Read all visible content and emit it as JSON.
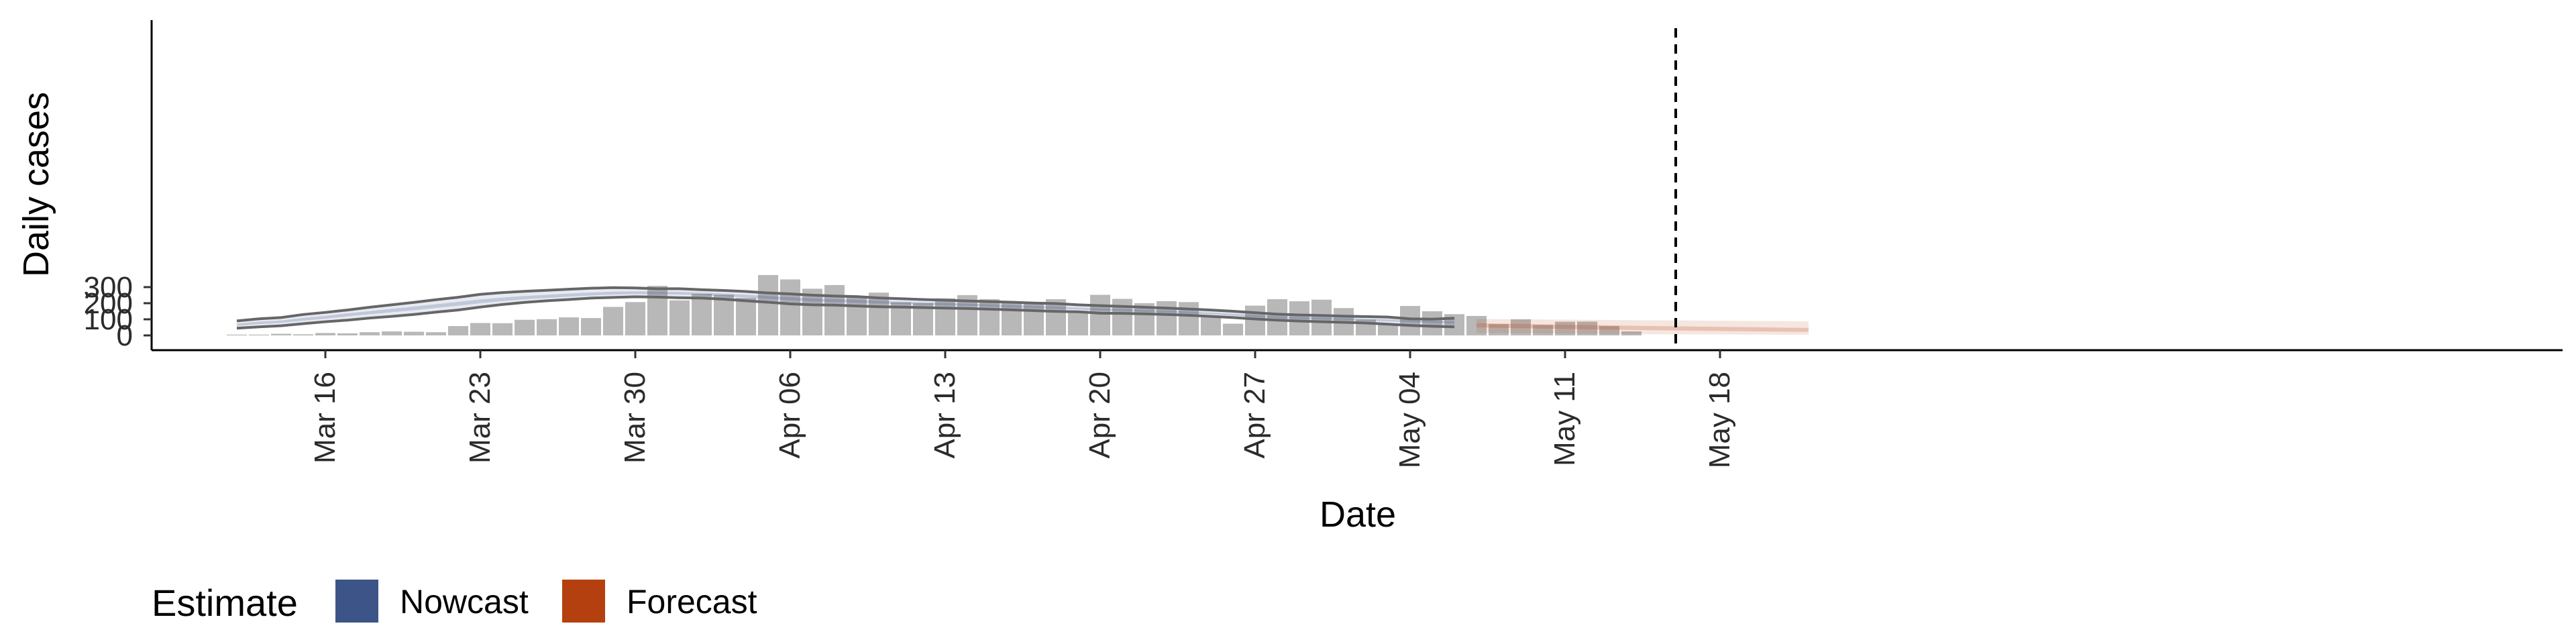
{
  "chart_data": {
    "type": "bar",
    "xlabel": "Date",
    "ylabel": "Daily cases",
    "ylim": [
      0,
      400
    ],
    "yticks": [
      0,
      100,
      200,
      300
    ],
    "xticks": [
      "Mar 16",
      "Mar 23",
      "Mar 30",
      "Apr 06",
      "Apr 13",
      "Apr 20",
      "Apr 27",
      "May 04",
      "May 11",
      "May 18"
    ],
    "xtick_dates": [
      "2020-03-16",
      "2020-03-23",
      "2020-03-30",
      "2020-04-06",
      "2020-04-13",
      "2020-04-20",
      "2020-04-27",
      "2020-05-04",
      "2020-05-11",
      "2020-05-18"
    ],
    "date_range": [
      "2020-03-09",
      "2020-05-24"
    ],
    "grid": false,
    "legend": {
      "position": "bottom-left",
      "title": "Estimate",
      "entries": [
        {
          "label": "Nowcast",
          "color": "#3c5488"
        },
        {
          "label": "Forecast",
          "color": "#b5400f"
        }
      ]
    },
    "bars": {
      "color": "#b8b8b8",
      "dates": [
        "2020-03-12",
        "2020-03-13",
        "2020-03-14",
        "2020-03-15",
        "2020-03-16",
        "2020-03-17",
        "2020-03-18",
        "2020-03-19",
        "2020-03-20",
        "2020-03-21",
        "2020-03-22",
        "2020-03-23",
        "2020-03-24",
        "2020-03-25",
        "2020-03-26",
        "2020-03-27",
        "2020-03-28",
        "2020-03-29",
        "2020-03-30",
        "2020-03-31",
        "2020-04-01",
        "2020-04-02",
        "2020-04-03",
        "2020-04-04",
        "2020-04-05",
        "2020-04-06",
        "2020-04-07",
        "2020-04-08",
        "2020-04-09",
        "2020-04-10",
        "2020-04-11",
        "2020-04-12",
        "2020-04-13",
        "2020-04-14",
        "2020-04-15",
        "2020-04-16",
        "2020-04-17",
        "2020-04-18",
        "2020-04-19",
        "2020-04-20",
        "2020-04-21",
        "2020-04-22",
        "2020-04-23",
        "2020-04-24",
        "2020-04-25",
        "2020-04-26",
        "2020-04-27",
        "2020-04-28",
        "2020-04-29",
        "2020-04-30",
        "2020-05-01",
        "2020-05-02",
        "2020-05-03",
        "2020-05-04",
        "2020-05-05",
        "2020-05-06",
        "2020-05-07",
        "2020-05-08",
        "2020-05-09",
        "2020-05-10",
        "2020-05-11",
        "2020-05-12",
        "2020-05-13",
        "2020-05-14"
      ],
      "values": [
        5,
        5,
        10,
        7,
        15,
        13,
        20,
        25,
        23,
        20,
        58,
        77,
        76,
        97,
        101,
        112,
        108,
        177,
        207,
        308,
        218,
        258,
        252,
        233,
        375,
        348,
        290,
        313,
        243,
        266,
        205,
        200,
        231,
        250,
        225,
        208,
        205,
        225,
        153,
        252,
        227,
        200,
        213,
        207,
        122,
        73,
        185,
        225,
        212,
        222,
        170,
        98,
        65,
        183,
        150,
        132,
        121,
        70,
        100,
        65,
        85,
        86,
        58,
        25
      ]
    },
    "series": [
      {
        "name": "Nowcast",
        "color": "#3c5488",
        "dates": [
          "2020-03-12",
          "2020-03-13",
          "2020-03-14",
          "2020-03-15",
          "2020-03-16",
          "2020-03-17",
          "2020-03-18",
          "2020-03-19",
          "2020-03-20",
          "2020-03-21",
          "2020-03-22",
          "2020-03-23",
          "2020-03-24",
          "2020-03-25",
          "2020-03-26",
          "2020-03-27",
          "2020-03-28",
          "2020-03-29",
          "2020-03-30",
          "2020-03-31",
          "2020-04-01",
          "2020-04-02",
          "2020-04-03",
          "2020-04-04",
          "2020-04-05",
          "2020-04-06",
          "2020-04-07",
          "2020-04-08",
          "2020-04-09",
          "2020-04-10",
          "2020-04-11",
          "2020-04-12",
          "2020-04-13",
          "2020-04-14",
          "2020-04-15",
          "2020-04-16",
          "2020-04-17",
          "2020-04-18",
          "2020-04-19",
          "2020-04-20",
          "2020-04-21",
          "2020-04-22",
          "2020-04-23",
          "2020-04-24",
          "2020-04-25",
          "2020-04-26",
          "2020-04-27",
          "2020-04-28",
          "2020-04-29",
          "2020-04-30",
          "2020-05-01",
          "2020-05-02",
          "2020-05-03",
          "2020-05-04",
          "2020-05-05",
          "2020-05-06"
        ],
        "median": [
          65,
          78,
          85,
          100,
          112,
          128,
          141,
          155,
          168,
          182,
          196,
          210,
          222,
          232,
          240,
          248,
          255,
          261,
          264,
          263,
          262,
          258,
          252,
          244,
          236,
          228,
          221,
          216,
          212,
          207,
          202,
          198,
          194,
          190,
          186,
          180,
          176,
          172,
          166,
          161,
          157,
          152,
          148,
          142,
          136,
          128,
          120,
          113,
          108,
          104,
          101,
          98,
          94,
          90,
          86,
          82
        ],
        "lower_90": [
          45,
          53,
          60,
          73,
          85,
          95,
          108,
          118,
          130,
          145,
          158,
          176,
          192,
          205,
          215,
          223,
          232,
          236,
          240,
          238,
          234,
          232,
          225,
          215,
          206,
          196,
          190,
          188,
          183,
          178,
          176,
          173,
          170,
          167,
          163,
          159,
          154,
          149,
          147,
          138,
          137,
          134,
          130,
          125,
          118,
          111,
          102,
          95,
          89,
          85,
          81,
          77,
          70,
          62,
          57,
          53
        ],
        "upper_90": [
          90,
          103,
          111,
          130,
          143,
          158,
          175,
          190,
          205,
          222,
          237,
          255,
          266,
          274,
          280,
          287,
          293,
          297,
          295,
          290,
          290,
          284,
          279,
          273,
          264,
          258,
          250,
          245,
          241,
          233,
          228,
          223,
          219,
          214,
          210,
          206,
          201,
          198,
          190,
          185,
          180,
          175,
          170,
          164,
          158,
          150,
          141,
          132,
          127,
          124,
          120,
          117,
          114,
          103,
          101,
          107
        ]
      },
      {
        "name": "Forecast",
        "color": "#b5400f",
        "dates": [
          "2020-05-07",
          "2020-05-08",
          "2020-05-09",
          "2020-05-10",
          "2020-05-11",
          "2020-05-12",
          "2020-05-13",
          "2020-05-14",
          "2020-05-15",
          "2020-05-16",
          "2020-05-17",
          "2020-05-18",
          "2020-05-19",
          "2020-05-20",
          "2020-05-21",
          "2020-05-22"
        ],
        "median": [
          65,
          62,
          59,
          56,
          53,
          50,
          48,
          45,
          43,
          41,
          39,
          37,
          35,
          33,
          31,
          30
        ],
        "lower_90": [
          15,
          14,
          13,
          12,
          11,
          10,
          9,
          8,
          7,
          7,
          6,
          6,
          5,
          5,
          4,
          4
        ],
        "upper_90": [
          102,
          101,
          100,
          99,
          98,
          97,
          96,
          95,
          94,
          93,
          92,
          91,
          90,
          89,
          88,
          87
        ]
      }
    ],
    "vline": {
      "date": "2020-05-16",
      "style": "dashed"
    }
  }
}
